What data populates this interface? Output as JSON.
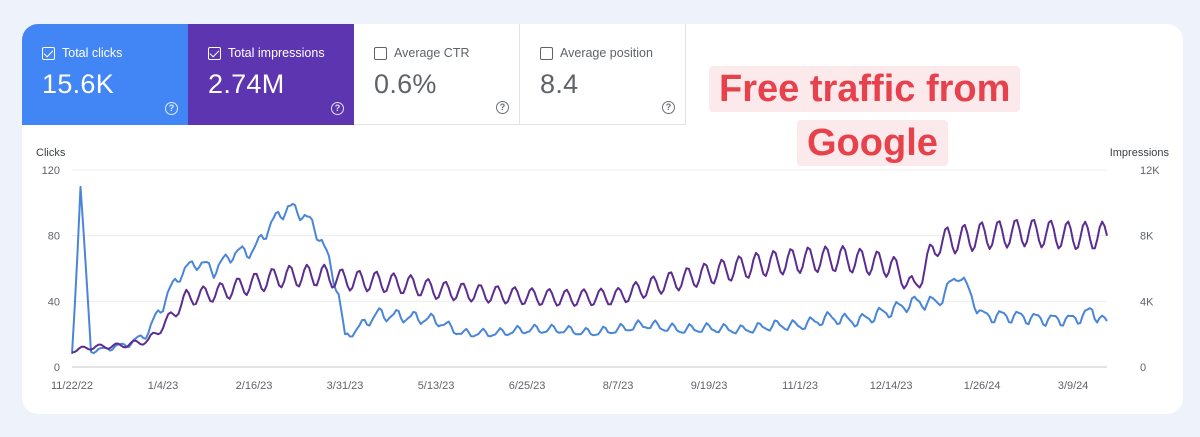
{
  "metrics": [
    {
      "label": "Total clicks",
      "value": "15.6K",
      "checked": true
    },
    {
      "label": "Total impressions",
      "value": "2.74M",
      "checked": true
    },
    {
      "label": "Average CTR",
      "value": "0.6%",
      "checked": false
    },
    {
      "label": "Average position",
      "value": "8.4",
      "checked": false
    }
  ],
  "help_glyph": "?",
  "banner": {
    "line1": "Free traffic from",
    "line2": "Google"
  },
  "colors": {
    "clicks": "#4a86d8",
    "impressions": "#5b2d90",
    "clicks_card": "#4285f4",
    "impressions_card": "#5e35b1",
    "banner_text": "#e7414b"
  },
  "chart_data": {
    "type": "line",
    "xlabel": "",
    "left_axis_title": "Clicks",
    "right_axis_title": "Impressions",
    "left_ticks": [
      "0",
      "40",
      "80",
      "120"
    ],
    "right_ticks": [
      "0",
      "4K",
      "8K",
      "12K"
    ],
    "ylim_left": [
      0,
      120
    ],
    "ylim_right": [
      0,
      12000
    ],
    "x_ticks": [
      "11/22/22",
      "1/4/23",
      "2/16/23",
      "3/31/23",
      "5/13/23",
      "6/25/23",
      "8/7/23",
      "9/19/23",
      "11/1/23",
      "12/14/23",
      "1/26/24",
      "3/9/24"
    ],
    "x_range": [
      "11/22/22",
      "3/25/24"
    ],
    "grid": true,
    "series": [
      {
        "name": "Clicks",
        "axis": "left",
        "x": [
          "11/22/22",
          "11/26/22",
          "12/1/22",
          "12/10/22",
          "12/20/22",
          "12/28/22",
          "1/4/23",
          "1/12/23",
          "1/20/23",
          "1/28/23",
          "2/6/23",
          "2/16/23",
          "2/24/23",
          "3/4/23",
          "3/12/23",
          "3/20/23",
          "3/28/23",
          "3/31/23",
          "4/15/23",
          "5/1/23",
          "5/13/23",
          "5/25/23",
          "6/10/23",
          "6/25/23",
          "7/10/23",
          "7/25/23",
          "8/7/23",
          "8/20/23",
          "9/5/23",
          "9/19/23",
          "10/5/23",
          "10/20/23",
          "11/1/23",
          "11/15/23",
          "11/28/23",
          "12/14/23",
          "12/25/23",
          "1/5/24",
          "1/15/24",
          "1/26/24",
          "2/10/24",
          "2/25/24",
          "3/9/24",
          "3/18/24",
          "3/25/24"
        ],
        "values": [
          8,
          110,
          10,
          12,
          15,
          22,
          40,
          58,
          65,
          60,
          70,
          72,
          88,
          98,
          93,
          78,
          45,
          18,
          32,
          30,
          28,
          20,
          20,
          22,
          22,
          20,
          22,
          25,
          22,
          23,
          22,
          25,
          25,
          30,
          28,
          35,
          40,
          40,
          58,
          32,
          32,
          30,
          30,
          35,
          28
        ]
      },
      {
        "name": "Impressions",
        "axis": "right",
        "x": [
          "11/22/22",
          "12/1/22",
          "12/15/22",
          "12/28/22",
          "1/4/23",
          "1/15/23",
          "2/1/23",
          "2/16/23",
          "3/1/23",
          "3/20/23",
          "3/31/23",
          "4/15/23",
          "5/1/23",
          "5/13/23",
          "6/1/23",
          "6/25/23",
          "7/15/23",
          "8/7/23",
          "8/25/23",
          "9/19/23",
          "10/10/23",
          "11/1/23",
          "11/20/23",
          "12/14/23",
          "12/25/23",
          "1/5/24",
          "1/26/24",
          "2/15/24",
          "3/9/24",
          "3/25/24"
        ],
        "values": [
          1000,
          1200,
          1300,
          1600,
          2500,
          4200,
          4600,
          5100,
          5500,
          5600,
          5300,
          5200,
          5000,
          4700,
          4500,
          4300,
          4200,
          4300,
          5000,
          5700,
          6200,
          6500,
          6600,
          6200,
          4800,
          7600,
          8000,
          8200,
          8000,
          8000
        ]
      }
    ]
  }
}
